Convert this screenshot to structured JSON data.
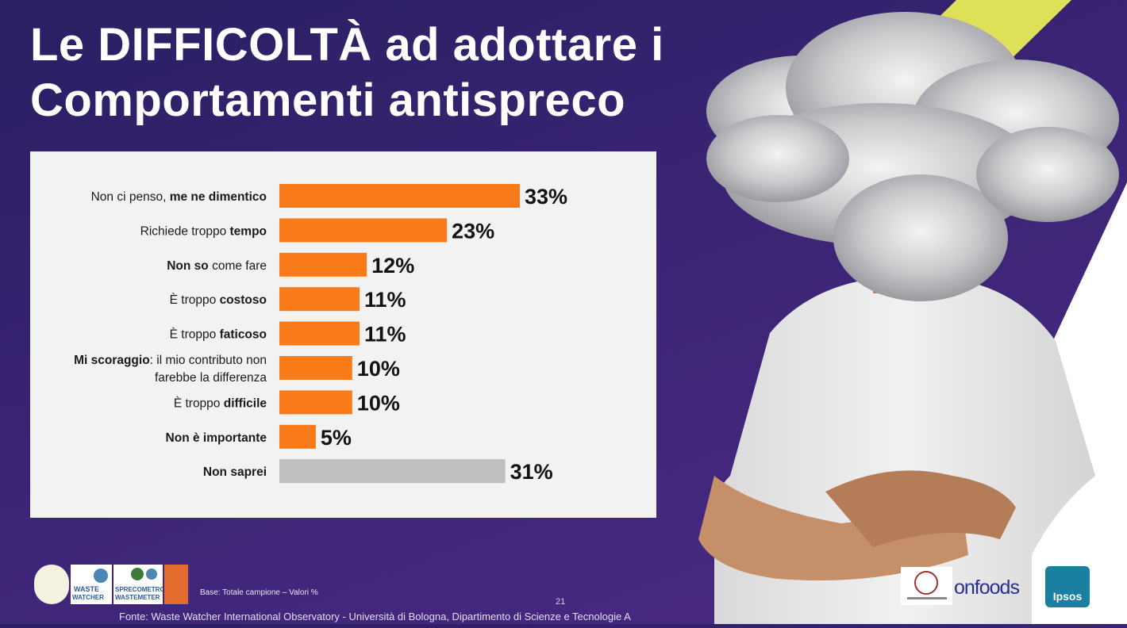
{
  "title": {
    "line1": "Le DIFFICOLTÀ ad adottare i",
    "line2": "Comportamenti antispreco"
  },
  "chart_data": {
    "type": "bar",
    "orientation": "horizontal",
    "categories": [
      {
        "parts": [
          {
            "t": "Non ci penso, ",
            "b": false
          },
          {
            "t": "me ne dimentico",
            "b": true
          }
        ]
      },
      {
        "parts": [
          {
            "t": "Richiede troppo ",
            "b": false
          },
          {
            "t": "tempo",
            "b": true
          }
        ]
      },
      {
        "parts": [
          {
            "t": "Non so",
            "b": true
          },
          {
            "t": " come fare",
            "b": false
          }
        ]
      },
      {
        "parts": [
          {
            "t": "È troppo ",
            "b": false
          },
          {
            "t": "costoso",
            "b": true
          }
        ]
      },
      {
        "parts": [
          {
            "t": "È troppo ",
            "b": false
          },
          {
            "t": "faticoso",
            "b": true
          }
        ]
      },
      {
        "parts": [
          {
            "t": "Mi scoraggio",
            "b": true
          },
          {
            "t": ": il mio contributo non",
            "b": false
          }
        ],
        "line2": "farebbe la differenza"
      },
      {
        "parts": [
          {
            "t": "È troppo ",
            "b": false
          },
          {
            "t": "difficile",
            "b": true
          }
        ]
      },
      {
        "parts": [
          {
            "t": "Non è importante",
            "b": true
          }
        ]
      },
      {
        "parts": [
          {
            "t": "Non saprei",
            "b": true
          }
        ]
      }
    ],
    "values": [
      33,
      23,
      12,
      11,
      11,
      10,
      10,
      5,
      31
    ],
    "value_labels": [
      "33%",
      "23%",
      "12%",
      "11%",
      "11%",
      "10%",
      "10%",
      "5%",
      "31%"
    ],
    "bar_colors": [
      "#f97a18",
      "#f97a18",
      "#f97a18",
      "#f97a18",
      "#f97a18",
      "#f97a18",
      "#f97a18",
      "#f97a18",
      "#bfbfbf"
    ],
    "xlim": [
      0,
      100
    ],
    "grid": false
  },
  "footer": {
    "base_note": "Base: Totale campione – Valori %",
    "page_number": "21",
    "source": "Fonte: Waste Watcher International Observatory - Università di Bologna, Dipartimento di Scienze e Tecnologie A"
  },
  "logos": {
    "left": [
      "spreco-zero-logo",
      "waste-watcher-logo",
      "sprecometro-logo",
      "last-minute-market-logo"
    ],
    "right": [
      "university-seal-logo",
      "onfoods-logo",
      "ipsos-logo"
    ],
    "onfoods_text": "onfoods",
    "ipsos_text": "Ipsos"
  },
  "colors": {
    "background": "#3a2474",
    "accent_bar": "#f97a18",
    "neutral_bar": "#bfbfbf",
    "yellow_stripe": "#dfe05a"
  }
}
